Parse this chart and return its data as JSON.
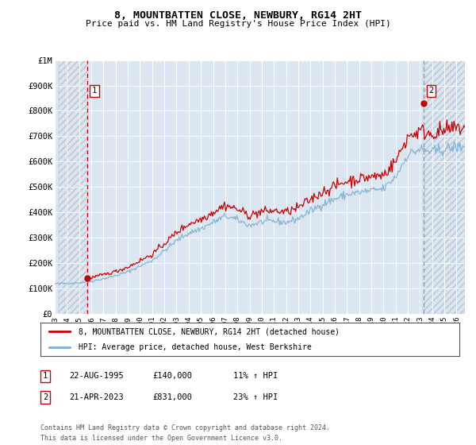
{
  "title": "8, MOUNTBATTEN CLOSE, NEWBURY, RG14 2HT",
  "subtitle": "Price paid vs. HM Land Registry's House Price Index (HPI)",
  "ylim": [
    0,
    1000000
  ],
  "yticks": [
    0,
    100000,
    200000,
    300000,
    400000,
    500000,
    600000,
    700000,
    800000,
    900000,
    1000000
  ],
  "ytick_labels": [
    "£0",
    "£100K",
    "£200K",
    "£300K",
    "£400K",
    "£500K",
    "£600K",
    "£700K",
    "£800K",
    "£900K",
    "£1M"
  ],
  "xlim_start": 1993.3,
  "xlim_end": 2026.7,
  "xticks": [
    1993,
    1994,
    1995,
    1996,
    1997,
    1998,
    1999,
    2000,
    2001,
    2002,
    2003,
    2004,
    2005,
    2006,
    2007,
    2008,
    2009,
    2010,
    2011,
    2012,
    2013,
    2014,
    2015,
    2016,
    2017,
    2018,
    2019,
    2020,
    2021,
    2022,
    2023,
    2024,
    2025,
    2026
  ],
  "sale1_x": 1995.64,
  "sale1_y": 140000,
  "sale2_x": 2023.3,
  "sale2_y": 831000,
  "sale_color": "#cc0000",
  "hpi_color": "#7BAFD4",
  "background_color": "#dce6f1",
  "hatch_color": "#b8c4d4",
  "grid_color": "#ffffff",
  "sale1_vline_color": "#cc0000",
  "sale2_vline_color": "#8899aa",
  "legend_line1": "8, MOUNTBATTEN CLOSE, NEWBURY, RG14 2HT (detached house)",
  "legend_line2": "HPI: Average price, detached house, West Berkshire",
  "annotation1_label": "1",
  "annotation1_date": "22-AUG-1995",
  "annotation1_price": "£140,000",
  "annotation1_hpi": "11% ↑ HPI",
  "annotation2_label": "2",
  "annotation2_date": "21-APR-2023",
  "annotation2_price": "£831,000",
  "annotation2_hpi": "23% ↑ HPI",
  "footer": "Contains HM Land Registry data © Crown copyright and database right 2024.\nThis data is licensed under the Open Government Licence v3.0."
}
